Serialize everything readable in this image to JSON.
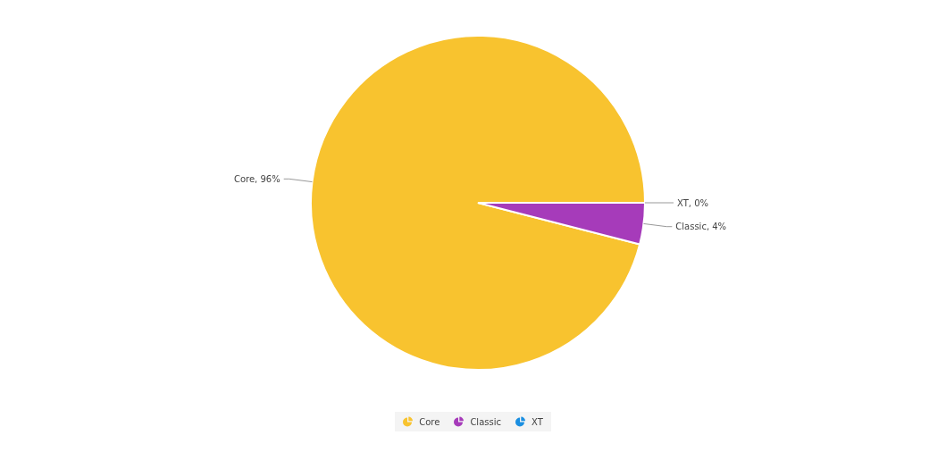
{
  "chart_data": {
    "type": "pie",
    "categories": [
      "Core",
      "Classic",
      "XT"
    ],
    "values": [
      96,
      4,
      0
    ],
    "colors": [
      "#f8c32f",
      "#a63bba",
      "#1b8fe1"
    ],
    "value_labels": [
      "Core, 96%",
      "Classic, 4%",
      "XT, 0%"
    ],
    "legend": "bottom"
  }
}
